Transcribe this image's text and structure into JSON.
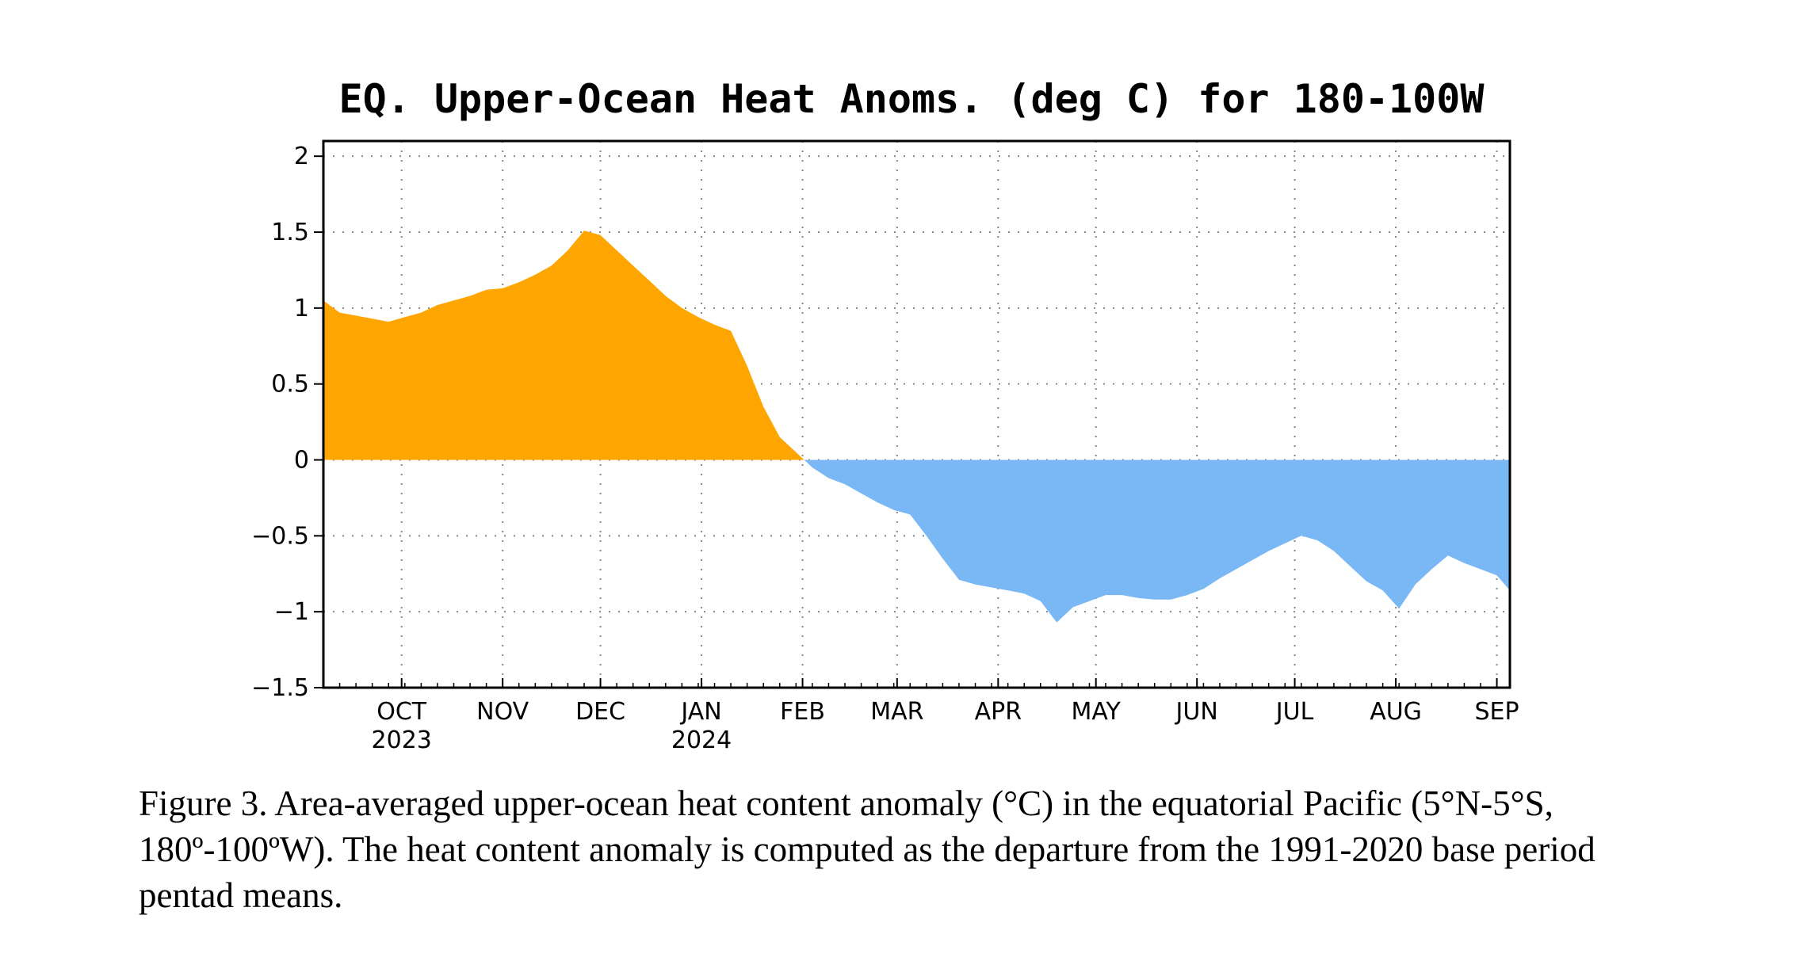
{
  "chart_data": {
    "type": "area",
    "title": "EQ. Upper-Ocean Heat Anoms. (deg C) for 180-100W",
    "xlabel": "",
    "ylabel": "",
    "ylim": [
      -1.5,
      2.1
    ],
    "xlim": [
      "2023-09-07",
      "2024-09-05"
    ],
    "yticks": [
      -1.5,
      -1,
      -0.5,
      0,
      0.5,
      1,
      1.5,
      2
    ],
    "ytick_labels": [
      "-1.5",
      "-1",
      "-0.5",
      "0",
      "0.5",
      "1",
      "1.5",
      "2"
    ],
    "xticks": [
      {
        "date": "2023-10-01",
        "label": "OCT",
        "year": "2023"
      },
      {
        "date": "2023-11-01",
        "label": "NOV",
        "year": ""
      },
      {
        "date": "2023-12-01",
        "label": "DEC",
        "year": ""
      },
      {
        "date": "2024-01-01",
        "label": "JAN",
        "year": "2024"
      },
      {
        "date": "2024-02-01",
        "label": "FEB",
        "year": ""
      },
      {
        "date": "2024-03-01",
        "label": "MAR",
        "year": ""
      },
      {
        "date": "2024-04-01",
        "label": "APR",
        "year": ""
      },
      {
        "date": "2024-05-01",
        "label": "MAY",
        "year": ""
      },
      {
        "date": "2024-06-01",
        "label": "JUN",
        "year": ""
      },
      {
        "date": "2024-07-01",
        "label": "JUL",
        "year": ""
      },
      {
        "date": "2024-08-01",
        "label": "AUG",
        "year": ""
      },
      {
        "date": "2024-09-01",
        "label": "SEP",
        "year": ""
      }
    ],
    "grid": true,
    "positive_color": "#ffa500",
    "negative_color": "#7ab8f5",
    "x": [
      "2023-09-07",
      "2023-09-12",
      "2023-09-17",
      "2023-09-22",
      "2023-09-27",
      "2023-10-02",
      "2023-10-07",
      "2023-10-12",
      "2023-10-17",
      "2023-10-22",
      "2023-10-27",
      "2023-11-01",
      "2023-11-06",
      "2023-11-11",
      "2023-11-16",
      "2023-11-21",
      "2023-11-26",
      "2023-12-01",
      "2023-12-06",
      "2023-12-11",
      "2023-12-16",
      "2023-12-21",
      "2023-12-26",
      "2023-12-31",
      "2024-01-05",
      "2024-01-10",
      "2024-01-15",
      "2024-01-20",
      "2024-01-25",
      "2024-01-30",
      "2024-02-04",
      "2024-02-09",
      "2024-02-14",
      "2024-02-19",
      "2024-02-24",
      "2024-02-29",
      "2024-03-05",
      "2024-03-10",
      "2024-03-15",
      "2024-03-20",
      "2024-03-25",
      "2024-03-30",
      "2024-04-04",
      "2024-04-09",
      "2024-04-14",
      "2024-04-19",
      "2024-04-24",
      "2024-04-29",
      "2024-05-04",
      "2024-05-09",
      "2024-05-14",
      "2024-05-19",
      "2024-05-24",
      "2024-05-29",
      "2024-06-03",
      "2024-06-08",
      "2024-06-13",
      "2024-06-18",
      "2024-06-23",
      "2024-06-28",
      "2024-07-03",
      "2024-07-08",
      "2024-07-13",
      "2024-07-18",
      "2024-07-23",
      "2024-07-28",
      "2024-08-02",
      "2024-08-07",
      "2024-08-12",
      "2024-08-17",
      "2024-08-22",
      "2024-08-27",
      "2024-09-01",
      "2024-09-05"
    ],
    "values": [
      1.05,
      0.97,
      0.95,
      0.93,
      0.91,
      0.94,
      0.97,
      1.02,
      1.05,
      1.08,
      1.12,
      1.13,
      1.17,
      1.22,
      1.28,
      1.38,
      1.51,
      1.48,
      1.38,
      1.28,
      1.18,
      1.08,
      1.0,
      0.94,
      0.89,
      0.85,
      0.62,
      0.35,
      0.15,
      0.05,
      -0.05,
      -0.12,
      -0.16,
      -0.22,
      -0.28,
      -0.33,
      -0.36,
      -0.5,
      -0.65,
      -0.79,
      -0.82,
      -0.84,
      -0.86,
      -0.88,
      -0.93,
      -1.07,
      -0.97,
      -0.93,
      -0.89,
      -0.89,
      -0.91,
      -0.92,
      -0.92,
      -0.89,
      -0.85,
      -0.78,
      -0.72,
      -0.66,
      -0.6,
      -0.55,
      -0.5,
      -0.53,
      -0.6,
      -0.7,
      -0.8,
      -0.86,
      -0.98,
      -0.82,
      -0.72,
      -0.63,
      -0.68,
      -0.72,
      -0.76,
      -0.86
    ]
  },
  "caption": "Figure 3. Area-averaged upper-ocean heat content anomaly (°C) in the equatorial Pacific (5°N-5°S, 180º-100ºW). The heat content anomaly is computed as the departure from the 1991-2020 base period pentad means."
}
